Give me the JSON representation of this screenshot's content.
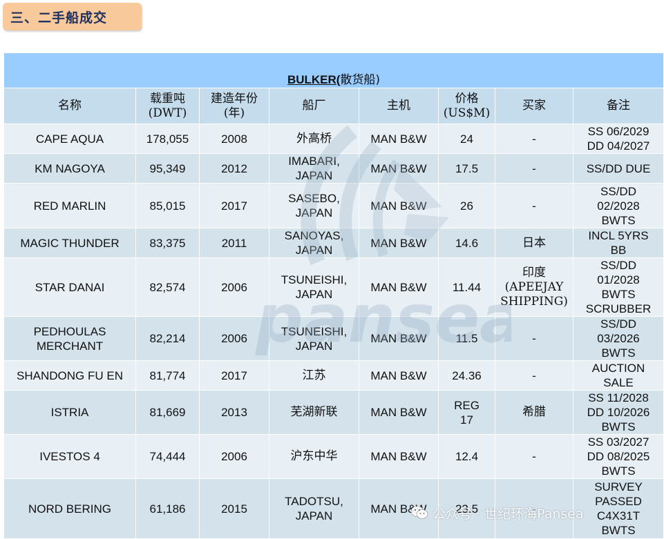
{
  "section": {
    "title": "三、二手船成交"
  },
  "table": {
    "banner_en": "BULKER(",
    "banner_zh": "散货船)",
    "headers": [
      [
        "名称"
      ],
      [
        "载重吨",
        "(DWT)"
      ],
      [
        "建造年份",
        "(年)"
      ],
      [
        "船厂"
      ],
      [
        "主机"
      ],
      [
        "价格",
        "(US$M)"
      ],
      [
        "买家"
      ],
      [
        "备注"
      ]
    ],
    "rows": [
      {
        "name": [
          "CAPE AQUA"
        ],
        "dwt": "178,055",
        "year": "2008",
        "yard": [
          "外高桥"
        ],
        "engine": "MAN B&W",
        "price": [
          "24"
        ],
        "buyer": [
          "-"
        ],
        "remark": [
          "SS 06/2029",
          "DD 04/2027"
        ]
      },
      {
        "name": [
          "KM NAGOYA"
        ],
        "dwt": "95,349",
        "year": "2012",
        "yard": [
          "IMABARI,",
          "JAPAN"
        ],
        "engine": "MAN B&W",
        "price": [
          "17.5"
        ],
        "buyer": [
          "-"
        ],
        "remark": [
          "SS/DD DUE"
        ]
      },
      {
        "name": [
          "RED MARLIN"
        ],
        "dwt": "85,015",
        "year": "2017",
        "yard": [
          "SASEBO,",
          "JAPAN"
        ],
        "engine": "MAN B&W",
        "price": [
          "26"
        ],
        "buyer": [
          "-"
        ],
        "remark": [
          "SS/DD",
          "02/2028",
          "BWTS"
        ]
      },
      {
        "name": [
          "MAGIC THUNDER"
        ],
        "dwt": "83,375",
        "year": "2011",
        "yard": [
          "SANOYAS,",
          "JAPAN"
        ],
        "engine": "MAN B&W",
        "price": [
          "14.6"
        ],
        "buyer": [
          "日本"
        ],
        "remark": [
          "INCL 5YRS",
          "BB"
        ]
      },
      {
        "name": [
          "STAR DANAI"
        ],
        "dwt": "82,574",
        "year": "2006",
        "yard": [
          "TSUNEISHI,",
          "JAPAN"
        ],
        "engine": "MAN B&W",
        "price": [
          "11.44"
        ],
        "buyer": [
          "印度",
          "(APEEJAY",
          "SHIPPING)"
        ],
        "remark": [
          "SS/DD",
          "01/2028",
          "BWTS",
          "SCRUBBER"
        ]
      },
      {
        "name": [
          "PEDHOULAS",
          "MERCHANT"
        ],
        "dwt": "82,214",
        "year": "2006",
        "yard": [
          "TSUNEISHI,",
          "JAPAN"
        ],
        "engine": "MAN B&W",
        "price": [
          "11.5"
        ],
        "buyer": [
          "-"
        ],
        "remark": [
          "SS/DD",
          "03/2026",
          "BWTS"
        ]
      },
      {
        "name": [
          "SHANDONG FU EN"
        ],
        "dwt": "81,774",
        "year": "2017",
        "yard": [
          "江苏"
        ],
        "engine": "MAN B&W",
        "price": [
          "24.36"
        ],
        "buyer": [
          "-"
        ],
        "remark": [
          "AUCTION",
          "SALE"
        ]
      },
      {
        "name": [
          "ISTRIA"
        ],
        "dwt": "81,669",
        "year": "2013",
        "yard": [
          "芜湖新联"
        ],
        "engine": "MAN B&W",
        "price": [
          "REG",
          "17"
        ],
        "buyer": [
          "希腊"
        ],
        "remark": [
          "SS 11/2028",
          "DD 10/2026",
          "BWTS"
        ]
      },
      {
        "name": [
          "IVESTOS 4"
        ],
        "dwt": "74,444",
        "year": "2006",
        "yard": [
          "沪东中华"
        ],
        "engine": "MAN B&W",
        "price": [
          "12.4"
        ],
        "buyer": [
          "-"
        ],
        "remark": [
          "SS 03/2027",
          "DD 08/2025",
          "BWTS"
        ]
      },
      {
        "name": [
          "NORD BERING"
        ],
        "dwt": "61,186",
        "year": "2015",
        "yard": [
          "TADOTSU,",
          "JAPAN"
        ],
        "engine": "MAN B&W",
        "price": [
          "23.5"
        ],
        "buyer": [
          "-"
        ],
        "remark": [
          "SURVEY",
          "PASSED",
          "C4X31T",
          "BWTS"
        ]
      }
    ]
  },
  "watermark": {
    "text": "pansea"
  },
  "footer": {
    "brand": "公众号 · 世纪环海Pansea",
    "icon": "wechat-icon"
  },
  "colors": {
    "banner": "#99ccff",
    "header": "#c5dcec",
    "row_odd": "#e8eff5",
    "row_even": "#d4e2ec",
    "tab": "#f8c99a",
    "title": "#1f2f5e"
  }
}
